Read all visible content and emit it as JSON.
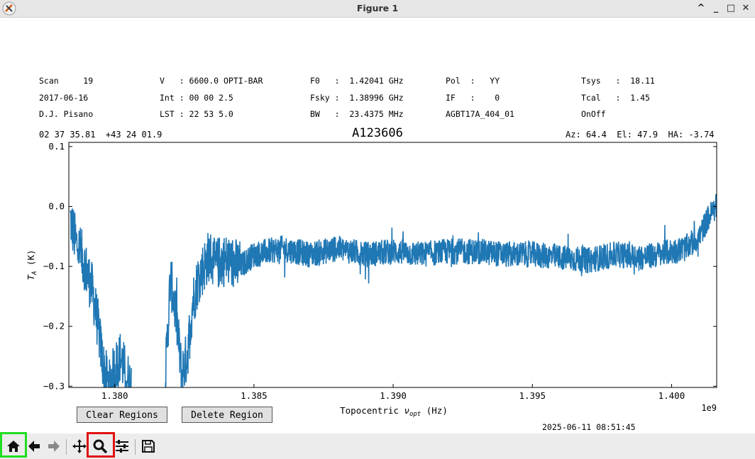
{
  "window": {
    "title": "Figure 1",
    "buttons": [
      "^",
      "_",
      "□",
      "✕"
    ]
  },
  "header": {
    "col1": [
      "Scan     19",
      "2017-06-16",
      "D.J. Pisano"
    ],
    "col2": [
      "V   : 6600.0 OPTI-BAR",
      "Int : 00 00 2.5",
      "LST : 22 53 5.0"
    ],
    "col3": [
      "F0   :  1.42041 GHz",
      "Fsky :  1.38996 GHz",
      "BW   :  23.4375 MHz"
    ],
    "col4": [
      "Pol  :   YY",
      "IF   :    0",
      "AGBT17A_404_01"
    ],
    "col5": [
      "Tsys   :  18.11",
      "Tcal   :  1.45",
      "OnOff"
    ],
    "coords": "02 37 35.81  +43 24 01.9",
    "object": "A123606",
    "azel": "Az: 64.4  El: 47.9  HA: -3.74"
  },
  "chart_data": {
    "type": "line",
    "xlabel": "Topocentric ν_opt (Hz)",
    "xlabel_main": "Topocentric ",
    "xlabel_nu": "ν",
    "xlabel_sub": "opt",
    "xlabel_unit": " (Hz)",
    "ylabel": "T_A (K)",
    "ylabel_T": "T",
    "ylabel_sub": "A",
    "ylabel_unit": " (K)",
    "x_offset_label": "1e9",
    "xlim": [
      1.37835,
      1.40162
    ],
    "ylim": [
      -0.302,
      0.107
    ],
    "xticks": [
      1.38,
      1.385,
      1.39,
      1.395,
      1.4
    ],
    "xtick_labels": [
      "1.380",
      "1.385",
      "1.390",
      "1.395",
      "1.400"
    ],
    "yticks": [
      0.1,
      0.0,
      -0.1,
      -0.2,
      -0.3
    ],
    "ytick_labels": [
      "0.1",
      "0.0",
      "−0.1",
      "−0.2",
      "−0.3"
    ],
    "color": "#1f77b4",
    "series": [
      {
        "x": [
          1.3784,
          1.3786,
          1.3788,
          1.379,
          1.3792,
          1.3794,
          1.3796,
          1.3798,
          1.38,
          1.3802,
          1.3804,
          1.3806,
          1.3818,
          1.382,
          1.3822,
          1.3824,
          1.3826,
          1.3828,
          1.383,
          1.3832,
          1.3834,
          1.3836,
          1.3838,
          1.384,
          1.3845,
          1.385,
          1.386,
          1.387,
          1.388,
          1.389,
          1.39,
          1.391,
          1.392,
          1.393,
          1.394,
          1.395,
          1.396,
          1.397,
          1.398,
          1.399,
          1.4,
          1.4005,
          1.401,
          1.4013,
          1.4016
        ],
        "y": [
          -0.02,
          -0.06,
          -0.08,
          -0.11,
          -0.14,
          -0.2,
          -0.27,
          -0.3,
          -0.27,
          -0.25,
          -0.28,
          -0.3,
          -0.3,
          -0.12,
          -0.18,
          -0.28,
          -0.25,
          -0.16,
          -0.12,
          -0.1,
          -0.08,
          -0.1,
          -0.09,
          -0.09,
          -0.1,
          -0.08,
          -0.07,
          -0.08,
          -0.07,
          -0.08,
          -0.075,
          -0.08,
          -0.075,
          -0.075,
          -0.08,
          -0.08,
          -0.085,
          -0.09,
          -0.08,
          -0.085,
          -0.075,
          -0.07,
          -0.05,
          -0.02,
          0.0
        ]
      }
    ]
  },
  "controls": {
    "clear_regions": "Clear Regions",
    "delete_region": "Delete Region",
    "timestamp": "2025-06-11 08:51:45"
  },
  "toolbar": {
    "icons": [
      "home-icon",
      "back-icon",
      "forward-icon",
      "pan-icon",
      "zoom-icon",
      "configure-subplots-icon",
      "save-icon"
    ]
  }
}
